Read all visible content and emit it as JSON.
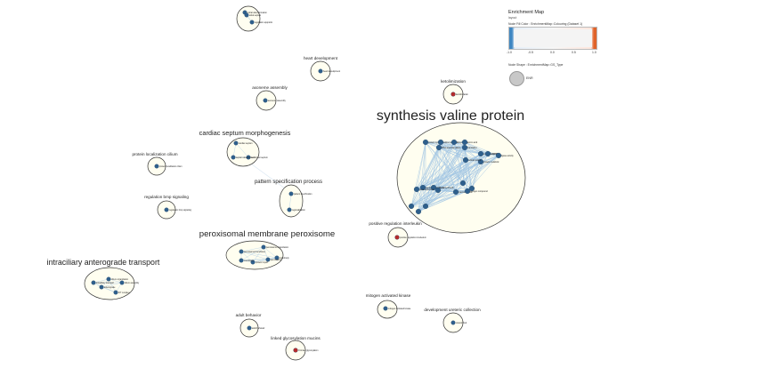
{
  "clusters": [
    {
      "title": "",
      "nodes": [
        {
          "label": "mitral valve formation"
        },
        {
          "label": "regulation apoptotic"
        },
        {
          "label": "atrial septum"
        }
      ]
    },
    {
      "title": "heart development",
      "nodes": [
        {
          "label": "heart development"
        }
      ]
    },
    {
      "title": "axoneme assembly",
      "nodes": [
        {
          "label": "axoneme assembly"
        }
      ]
    },
    {
      "title": "ketolimization",
      "nodes": [
        {
          "label": "ketolimization"
        }
      ]
    },
    {
      "title": "synthesis valine protein",
      "nodes": [
        {
          "label": "protein synthesis"
        },
        {
          "label": "valine metabolic"
        },
        {
          "label": "biosynthesis"
        },
        {
          "label": "amino acid"
        },
        {
          "label": "tRNA aminoacylation"
        },
        {
          "label": "translation"
        },
        {
          "label": "aminoacyl tRNA"
        },
        {
          "label": "valyl tRNA"
        },
        {
          "label": "ligase activity"
        },
        {
          "label": "protein metabolic"
        },
        {
          "label": "cellular amino"
        },
        {
          "label": "peptide biosynthesis"
        },
        {
          "label": "amide biosynthesis"
        },
        {
          "label": "gene expression"
        },
        {
          "label": "macromolecule"
        },
        {
          "label": "nitrogen compound"
        }
      ]
    },
    {
      "title": "cardiac septum morphogenesis",
      "nodes": [
        {
          "label": "cardiac septum"
        },
        {
          "label": "ventricular septum"
        },
        {
          "label": "septum development"
        }
      ]
    },
    {
      "title": "protein localization cilium",
      "nodes": [
        {
          "label": "protein localization cilium"
        }
      ]
    },
    {
      "title": "pattern specification process",
      "nodes": [
        {
          "label": "pattern specification"
        },
        {
          "label": "regionalization"
        }
      ]
    },
    {
      "title": "regulation bmp signaling",
      "nodes": [
        {
          "label": "regulation bmp signaling"
        }
      ]
    },
    {
      "title": "positive regulation interleukin",
      "nodes": [
        {
          "label": "positive regulation interleukin"
        }
      ]
    },
    {
      "title": "peroxisomal membrane peroxisome",
      "nodes": [
        {
          "label": "peroxisomal membrane"
        },
        {
          "label": "peroxisome organization"
        },
        {
          "label": "microbody"
        },
        {
          "label": "protein import"
        },
        {
          "label": "peroxisome"
        },
        {
          "label": "membrane"
        }
      ]
    },
    {
      "title": "intraciliary anterograde transport",
      "nodes": [
        {
          "label": "intraciliary transport"
        },
        {
          "label": "anterograde"
        },
        {
          "label": "IFT complex"
        },
        {
          "label": "cilium assembly"
        },
        {
          "label": "cilium organization"
        }
      ]
    },
    {
      "title": "mitogen activated kinase",
      "nodes": [
        {
          "label": "mitogen activated kinase"
        }
      ]
    },
    {
      "title": "development ureteric collection",
      "nodes": [
        {
          "label": "ureteric bud"
        }
      ]
    },
    {
      "title": "adult behavior",
      "nodes": [
        {
          "label": "adult behavior"
        }
      ]
    },
    {
      "title": "linked glycosylation mucins",
      "nodes": [
        {
          "label": "O-linked glycosylation"
        }
      ]
    }
  ],
  "legend": {
    "title": "Enrichment Map",
    "subtitle": "layout",
    "fill_label": "Node Fill Color : EnrichmentMap::Colouring (Dataset 1)",
    "ticks": [
      "-1.0",
      "-0.5",
      "0.0",
      "0.5",
      "1.0"
    ],
    "shape_label": "Node Shape : EnrichmentMap::GS_Type",
    "shape_value": "ENR"
  },
  "colors": {
    "node_blue": "#2e5f8c",
    "node_red": "#b52a2a",
    "cluster_fill": "#fffef0",
    "cluster_stroke": "#333333",
    "edge": "#9dc3e3"
  }
}
